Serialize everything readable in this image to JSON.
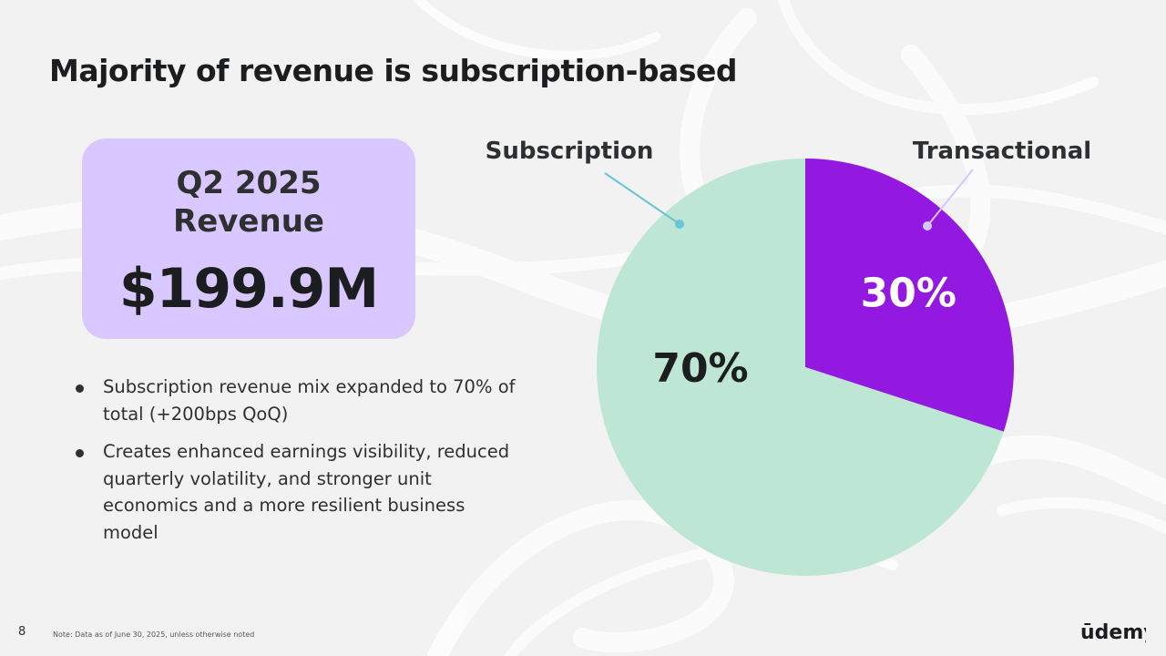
{
  "slide": {
    "title": "Majority of revenue is subscription-based",
    "page_number": "8",
    "footnote": "Note: Data as of June 30, 2025, unless otherwise noted",
    "logo_text": "ūdemy"
  },
  "revenue_card": {
    "label_line1": "Q2 2025",
    "label_line2": "Revenue",
    "value": "$199.9M"
  },
  "bullets": [
    "Subscription revenue mix expanded to 70% of total (+200bps QoQ)",
    "Creates enhanced earnings visibility, reduced quarterly volatility, and stronger unit economics and a more resilient business model"
  ],
  "chart_data": {
    "type": "pie",
    "title": "",
    "slices": [
      {
        "name": "Subscription",
        "value": 70,
        "label": "70%",
        "color": "#bde6d4",
        "label_color": "#1c1d1f",
        "leader_color": "#6cc3d5"
      },
      {
        "name": "Transactional",
        "value": 30,
        "label": "30%",
        "color": "#9319e0",
        "label_color": "#ffffff",
        "leader_color": "#d4c6ff"
      }
    ],
    "start_angle": "12 o'clock",
    "direction": "clockwise, Transactional first",
    "legend": "callout labels with leader lines"
  },
  "colors": {
    "background": "#f2f2f2",
    "card": "#d9c8ff",
    "accent_purple": "#9319e0",
    "accent_mint": "#bde6d4"
  }
}
